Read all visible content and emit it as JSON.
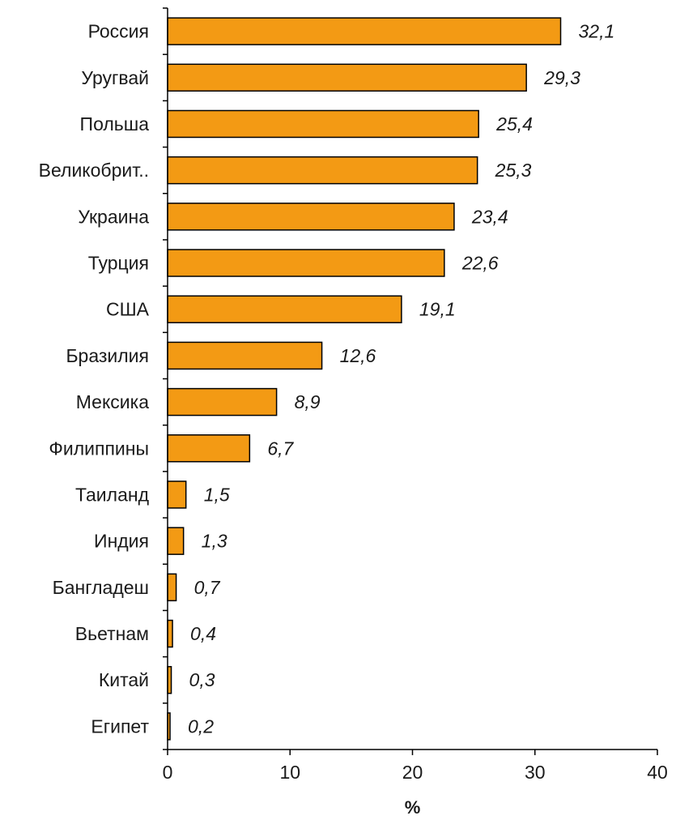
{
  "chart_data": {
    "type": "bar",
    "orientation": "horizontal",
    "categories": [
      "Россия",
      "Уругвай",
      "Польша",
      "Великобрит..",
      "Украина",
      "Турция",
      "США",
      "Бразилия",
      "Мексика",
      "Филиппины",
      "Таиланд",
      "Индия",
      "Бангладеш",
      "Вьетнам",
      "Китай",
      "Египет"
    ],
    "values": [
      32.1,
      29.3,
      25.4,
      25.3,
      23.4,
      22.6,
      19.1,
      12.6,
      8.9,
      6.7,
      1.5,
      1.3,
      0.7,
      0.4,
      0.3,
      0.2
    ],
    "value_labels": [
      "32,1",
      "29,3",
      "25,4",
      "25,3",
      "23,4",
      "22,6",
      "19,1",
      "12,6",
      "8,9",
      "6,7",
      "1,5",
      "1,3",
      "0,7",
      "0,4",
      "0,3",
      "0,2"
    ],
    "title": "",
    "xlabel": "%",
    "ylabel": "",
    "xlim": [
      0,
      40
    ],
    "x_ticks": [
      0,
      10,
      20,
      30,
      40
    ],
    "grid": false,
    "legend": "none",
    "bar_color": "#f39a14",
    "bar_edge_color": "#000000"
  }
}
